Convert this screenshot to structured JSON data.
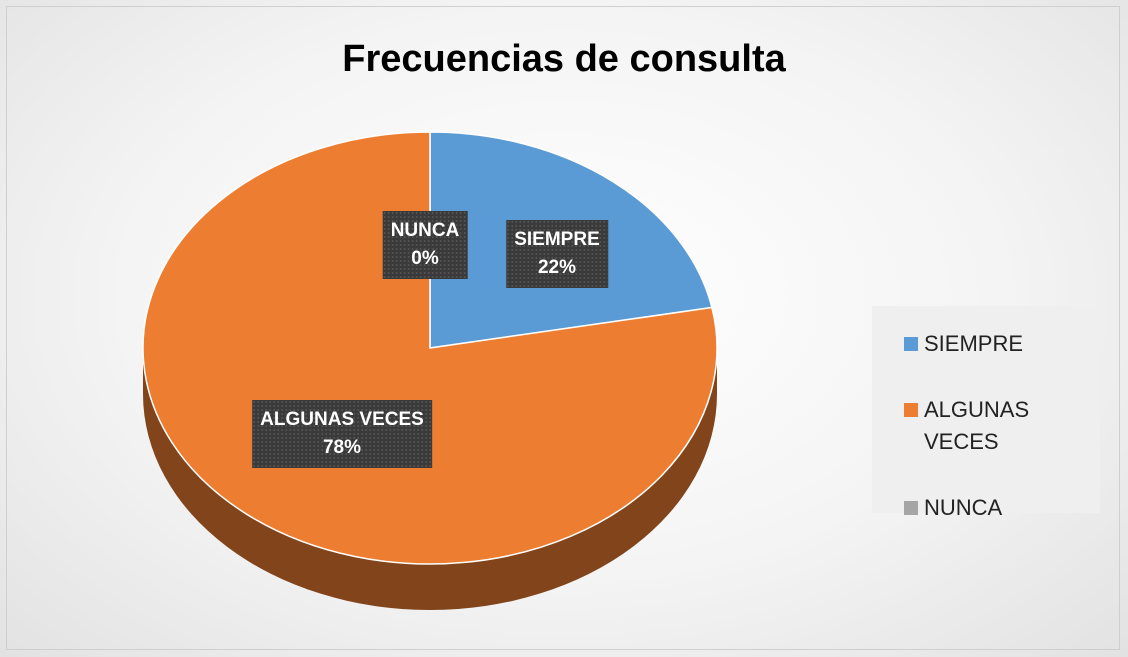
{
  "chart_data": {
    "type": "pie",
    "title": "Frecuencias de consulta",
    "categories": [
      "SIEMPRE",
      "ALGUNAS VECES",
      "NUNCA"
    ],
    "values": [
      22,
      78,
      0
    ],
    "value_labels": [
      "22%",
      "78%",
      "0%"
    ],
    "colors": [
      "#5b9bd5",
      "#ed7d31",
      "#a5a5a5"
    ],
    "legend": "right"
  }
}
